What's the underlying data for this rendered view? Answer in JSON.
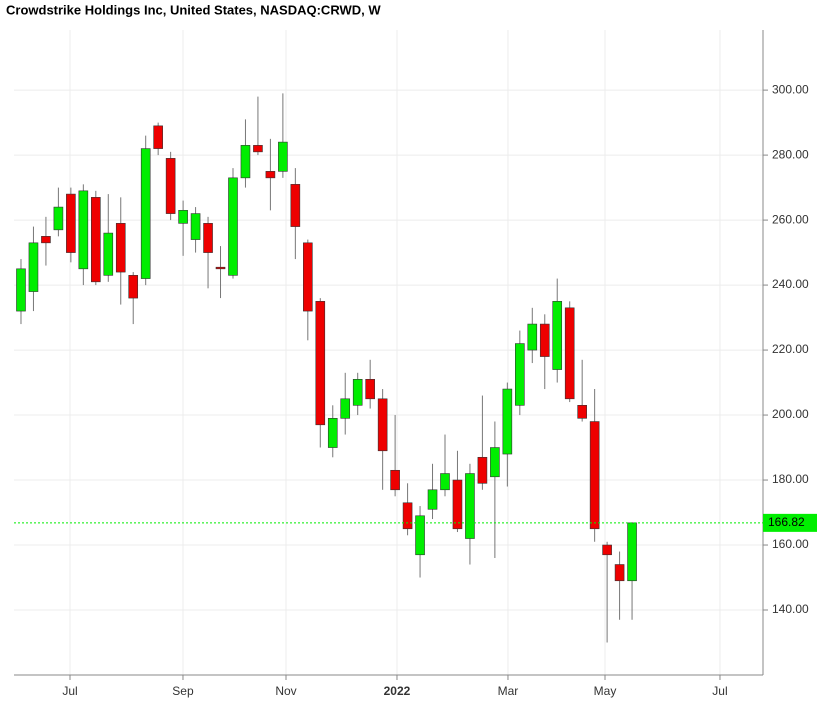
{
  "chart_data": {
    "type": "candlestick",
    "title": "Crowdstrike Holdings Inc, United States, NASDAQ:CRWD, W",
    "categories": [
      null,
      null,
      null,
      null,
      null,
      null,
      null,
      null,
      null,
      null,
      null,
      null,
      null,
      null,
      null,
      null,
      null,
      null,
      null,
      null,
      null,
      null,
      null,
      null,
      null,
      null,
      null,
      null,
      null,
      null,
      null,
      null,
      null,
      null,
      null,
      null,
      null,
      null,
      null,
      null,
      null,
      null,
      null,
      null,
      null,
      null,
      null,
      null,
      null,
      null
    ],
    "open": [
      232,
      238,
      255,
      257,
      268,
      245,
      267,
      243,
      259,
      243,
      242,
      289,
      279,
      259,
      254,
      259,
      245.5,
      243,
      273,
      283,
      275,
      275,
      271,
      253,
      235,
      190,
      199,
      203,
      211,
      205,
      183,
      173,
      157,
      171,
      177,
      180,
      162,
      187,
      181,
      188,
      203,
      220,
      228,
      214,
      233,
      203,
      198,
      160,
      154,
      149
    ],
    "high": [
      248,
      258,
      261,
      270,
      270,
      271,
      269,
      268,
      267,
      244,
      286,
      290,
      281,
      266,
      264,
      261,
      252,
      276,
      291,
      298,
      285,
      299,
      276,
      254,
      236,
      203,
      213,
      213,
      217,
      208,
      200,
      179,
      172,
      185,
      194,
      189,
      185,
      206,
      198,
      210,
      226,
      233,
      231,
      242,
      235,
      217,
      208,
      161,
      158,
      167
    ],
    "low": [
      228,
      232,
      246,
      255,
      247,
      240,
      240,
      241,
      234,
      228,
      240,
      280,
      260,
      249,
      250,
      239,
      236,
      242,
      270,
      280,
      263,
      273,
      248,
      223,
      190,
      187,
      194,
      200,
      202,
      177,
      175,
      163,
      150,
      168,
      175,
      164,
      154,
      177,
      156,
      178,
      200,
      216,
      208,
      210,
      204,
      198,
      161,
      130,
      137,
      137
    ],
    "close": [
      245,
      253,
      253,
      264,
      250,
      269,
      241,
      256,
      244,
      236,
      282,
      282,
      262,
      263,
      262,
      250,
      245,
      273,
      283,
      281,
      273,
      284,
      258,
      232,
      197,
      199,
      205,
      211,
      205,
      189,
      177,
      165,
      169,
      177,
      182,
      165,
      182,
      179,
      190,
      208,
      222,
      228,
      218,
      235,
      205,
      199,
      165,
      157,
      149,
      166.82
    ],
    "up_color": "#00ee00",
    "down_color": "#ee0000",
    "last_value": 166.82,
    "last_color": "#00ee00",
    "xlim": [
      -0.56,
      59.5
    ],
    "xticks": [
      {
        "value": 3.93,
        "label": "Jul"
      },
      {
        "value": 12.99,
        "label": "Sep"
      },
      {
        "value": 21.25,
        "label": "Nov"
      },
      {
        "value": 30.15,
        "label": "2022"
      },
      {
        "value": 39.05,
        "label": "Mar"
      },
      {
        "value": 46.83,
        "label": "May"
      },
      {
        "value": 56.05,
        "label": "Jul"
      }
    ],
    "ylim": [
      120,
      318.5
    ],
    "yticks": [
      {
        "value": 140,
        "label": "140.00"
      },
      {
        "value": 160,
        "label": "160.00"
      },
      {
        "value": 180,
        "label": "180.00"
      },
      {
        "value": 200,
        "label": "200.00"
      },
      {
        "value": 220,
        "label": "220.00"
      },
      {
        "value": 240,
        "label": "240.00"
      },
      {
        "value": 260,
        "label": "260.00"
      },
      {
        "value": 280,
        "label": "280.00"
      },
      {
        "value": 300,
        "label": "300.00"
      }
    ],
    "grid": true
  }
}
